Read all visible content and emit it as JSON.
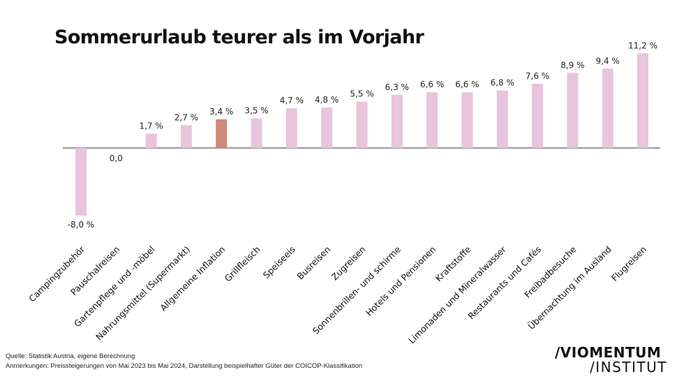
{
  "title": "Sommerurlaub teurer als im Vorjahr",
  "footer": {
    "source": "Quelle: Statistik Austria, eigene Berechnung",
    "note": "Anmerkungen: Preissteigerungen von Mai 2023 bis Mai 2024, Darstellung beispielhafter Güter der COICOP-Klassifikation"
  },
  "logo": {
    "line1": "/VIOMENTUM",
    "line2": "/INSTITUT"
  },
  "colors": {
    "bar": "#e8c4dd",
    "highlight": "#d08878",
    "axis": "#333333"
  },
  "chart_data": {
    "type": "bar",
    "title": "Sommerurlaub teurer als im Vorjahr",
    "xlabel": "",
    "ylabel": "",
    "grid": false,
    "highlight_category": "Allgemeine Inflation",
    "categories": [
      "Campingzubehör",
      "Pauschalreisen",
      "Gartenpflege und -möbel",
      "Nahrungsmittel (Supermarkt)",
      "Allgemeine Inflation",
      "Grillfleisch",
      "Speiseeis",
      "Busreisen",
      "Zugreisen",
      "Sonnenbrillen- und schirme",
      "Hotels und Pensionen",
      "Kraftstoffe",
      "Limonaden und Mineralwasser",
      "Restaurants und Cafés",
      "Freibadbesuche",
      "Übernachtung im Ausland",
      "Flugreisen"
    ],
    "values": [
      -8.0,
      0.0,
      1.7,
      2.7,
      3.4,
      3.5,
      4.7,
      4.8,
      5.5,
      6.3,
      6.6,
      6.6,
      6.8,
      7.6,
      8.9,
      9.4,
      11.2
    ],
    "value_labels": [
      "-8,0 %",
      "0,0",
      "1,7 %",
      "2,7 %",
      "3,4 %",
      "3,5 %",
      "4,7 %",
      "4,8 %",
      "5,5 %",
      "6,3 %",
      "6,6 %",
      "6,6 %",
      "6,8 %",
      "7,6 %",
      "8,9 %",
      "9,4 %",
      "11,2 %"
    ]
  }
}
